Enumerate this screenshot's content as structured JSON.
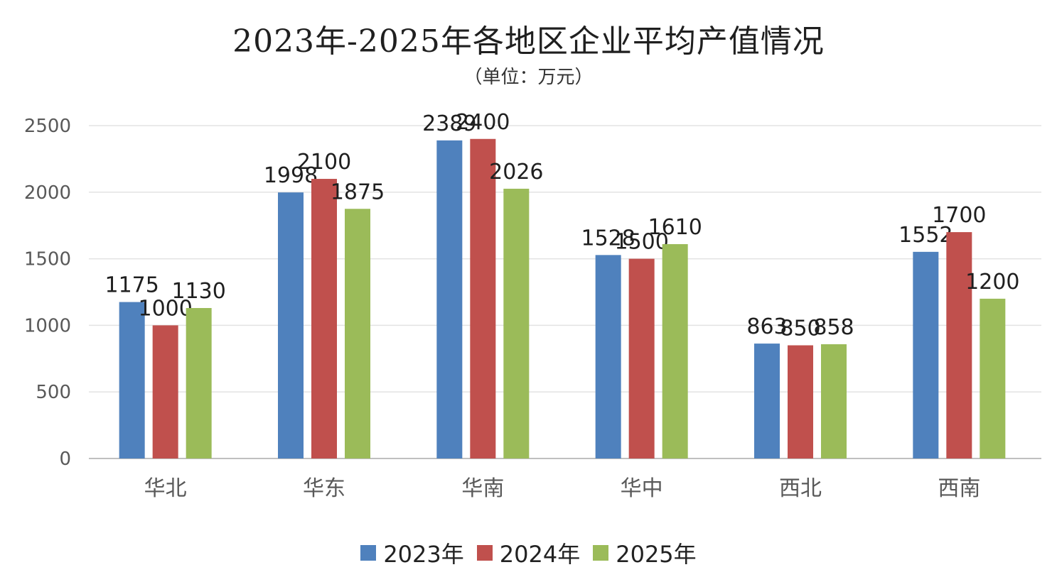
{
  "chart_data": {
    "type": "bar",
    "title": "2023年-2025年各地区企业平均产值情况",
    "subtitle": "（单位：万元）",
    "categories": [
      "华北",
      "华东",
      "华南",
      "华中",
      "西北",
      "西南"
    ],
    "series": [
      {
        "name": "2023年",
        "color": "#4f81bd",
        "values": [
          1175,
          1998,
          2389,
          1528,
          863,
          1552
        ]
      },
      {
        "name": "2024年",
        "color": "#c0504d",
        "values": [
          1000,
          2100,
          2400,
          1500,
          850,
          1700
        ]
      },
      {
        "name": "2025年",
        "color": "#9bbb59",
        "values": [
          1130,
          1875,
          2026,
          1610,
          858,
          1200
        ]
      }
    ],
    "ylim": [
      0,
      2500
    ],
    "yticks": [
      0,
      500,
      1000,
      1500,
      2000,
      2500
    ],
    "grid": true,
    "legend_position": "bottom"
  }
}
